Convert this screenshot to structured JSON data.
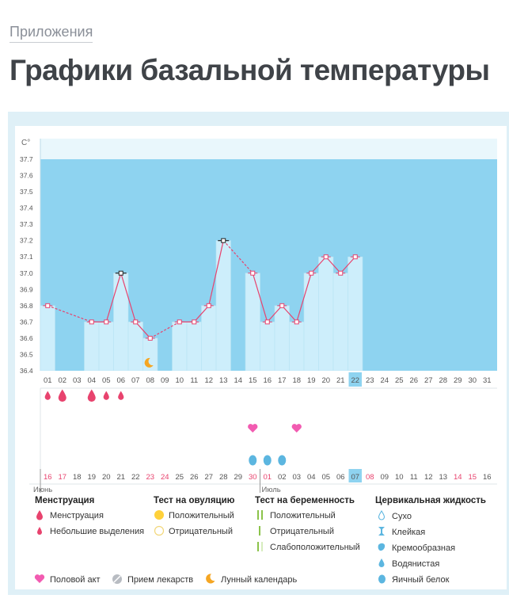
{
  "breadcrumb": "Приложения",
  "page_title": "Графики базальной температуры",
  "colors": {
    "plot_bg": "#8ed3f0",
    "bar_fill": "#cdeefb",
    "line": "#e8436e",
    "accent": "#5cc4e6",
    "text_red": "#e8436e"
  },
  "chart_data": {
    "type": "bar",
    "y_unit": "C°",
    "ylim": [
      36.4,
      37.7
    ],
    "y_ticks": [
      "37.7",
      "37.6",
      "37.5",
      "37.4",
      "37.3",
      "37.2",
      "37.1",
      "37.0",
      "36.9",
      "36.8",
      "36.7",
      "36.6",
      "36.5",
      "36.4"
    ],
    "cycle_days": [
      "01",
      "02",
      "03",
      "04",
      "05",
      "06",
      "07",
      "08",
      "09",
      "10",
      "11",
      "12",
      "13",
      "14",
      "15",
      "16",
      "17",
      "18",
      "19",
      "20",
      "21",
      "22",
      "23",
      "24",
      "25",
      "26",
      "27",
      "28",
      "29",
      "30",
      "31"
    ],
    "highlight_day": "22",
    "temperatures": [
      36.8,
      null,
      null,
      36.7,
      36.7,
      37.0,
      36.7,
      36.6,
      null,
      36.7,
      36.7,
      36.8,
      37.2,
      null,
      37.0,
      36.7,
      36.8,
      36.7,
      37.0,
      37.1,
      37.0,
      37.1,
      null,
      null,
      null,
      null,
      null,
      null,
      null,
      null,
      null
    ],
    "marked_days": [
      "06",
      "13"
    ],
    "lunar_calendar_days": [
      "08"
    ],
    "menstruation": [
      {
        "day": "01",
        "kind": "Небольшие выделения"
      },
      {
        "day": "02",
        "kind": "Менструация"
      },
      {
        "day": "04",
        "kind": "Менструация"
      },
      {
        "day": "05",
        "kind": "Небольшие выделения"
      },
      {
        "day": "06",
        "kind": "Небольшие выделения"
      }
    ],
    "intercourse_days": [
      "15",
      "18"
    ],
    "cervical_fluid_days": [
      "15",
      "16",
      "17"
    ],
    "calendar_dates": [
      "16",
      "17",
      "18",
      "19",
      "20",
      "21",
      "22",
      "23",
      "24",
      "25",
      "26",
      "27",
      "28",
      "29",
      "30",
      "01",
      "02",
      "03",
      "04",
      "05",
      "06",
      "07",
      "08",
      "09",
      "10",
      "11",
      "12",
      "13",
      "14",
      "15",
      "16"
    ],
    "red_dates_index": [
      0,
      1,
      7,
      8,
      14,
      15,
      22,
      28,
      29
    ],
    "highlight_date_index": 21,
    "month_labels": [
      {
        "label": "Июнь",
        "index": 0
      },
      {
        "label": "Июль",
        "index": 15
      }
    ]
  },
  "legend": {
    "menstruation": {
      "title": "Менструация",
      "items": [
        "Менструация",
        "Небольшие выделения"
      ]
    },
    "ovulation_test": {
      "title": "Тест на овуляцию",
      "items": [
        "Положительный",
        "Отрицательный"
      ]
    },
    "pregnancy_test": {
      "title": "Тест на беременность",
      "items": [
        "Положительный",
        "Отрицательный",
        "Слабоположительный"
      ]
    },
    "cervical_fluid": {
      "title": "Цервикальная жидкость",
      "items": [
        "Сухо",
        "Клейкая",
        "Кремообразная",
        "Водянистая",
        "Яичный белок"
      ]
    },
    "bottom": [
      "Половой акт",
      "Прием лекарств",
      "Лунный календарь"
    ]
  }
}
